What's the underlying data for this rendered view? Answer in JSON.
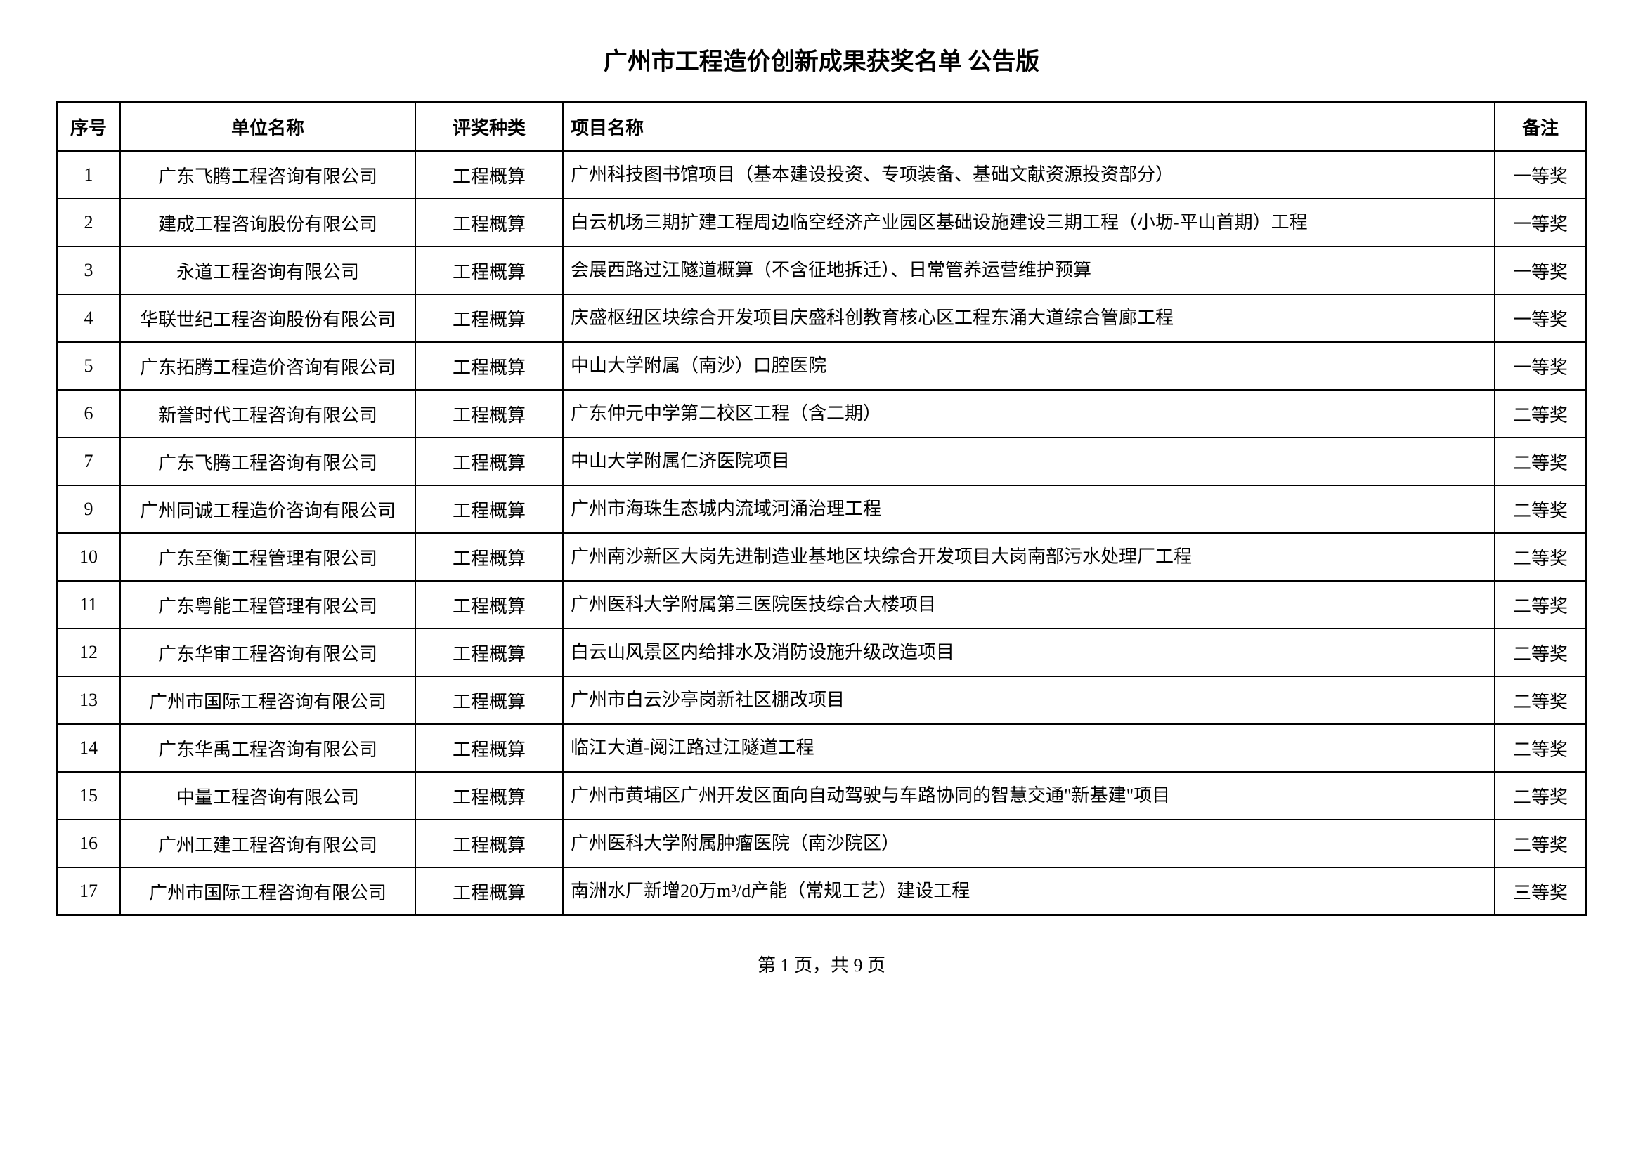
{
  "title": "广州市工程造价创新成果获奖名单 公告版",
  "headers": {
    "no": "序号",
    "company": "单位名称",
    "category": "评奖种类",
    "project": "项目名称",
    "remark": "备注"
  },
  "rows": [
    {
      "no": "1",
      "company": "广东飞腾工程咨询有限公司",
      "category": "工程概算",
      "project": "广州科技图书馆项目（基本建设投资、专项装备、基础文献资源投资部分）",
      "remark": "一等奖"
    },
    {
      "no": "2",
      "company": "建成工程咨询股份有限公司",
      "category": "工程概算",
      "project": "白云机场三期扩建工程周边临空经济产业园区基础设施建设三期工程（小坜-平山首期）工程",
      "remark": "一等奖"
    },
    {
      "no": "3",
      "company": "永道工程咨询有限公司",
      "category": "工程概算",
      "project": "会展西路过江隧道概算（不含征地拆迁）、日常管养运营维护预算",
      "remark": "一等奖"
    },
    {
      "no": "4",
      "company": "华联世纪工程咨询股份有限公司",
      "category": "工程概算",
      "project": "庆盛枢纽区块综合开发项目庆盛科创教育核心区工程东涌大道综合管廊工程",
      "remark": "一等奖"
    },
    {
      "no": "5",
      "company": "广东拓腾工程造价咨询有限公司",
      "category": "工程概算",
      "project": "中山大学附属（南沙）口腔医院",
      "remark": "一等奖"
    },
    {
      "no": "6",
      "company": "新誉时代工程咨询有限公司",
      "category": "工程概算",
      "project": "广东仲元中学第二校区工程（含二期）",
      "remark": "二等奖"
    },
    {
      "no": "7",
      "company": "广东飞腾工程咨询有限公司",
      "category": "工程概算",
      "project": "中山大学附属仁济医院项目",
      "remark": "二等奖"
    },
    {
      "no": "9",
      "company": "广州同诚工程造价咨询有限公司",
      "category": "工程概算",
      "project": "广州市海珠生态城内流域河涌治理工程",
      "remark": "二等奖"
    },
    {
      "no": "10",
      "company": "广东至衡工程管理有限公司",
      "category": "工程概算",
      "project": "广州南沙新区大岗先进制造业基地区块综合开发项目大岗南部污水处理厂工程",
      "remark": "二等奖"
    },
    {
      "no": "11",
      "company": "广东粤能工程管理有限公司",
      "category": "工程概算",
      "project": "广州医科大学附属第三医院医技综合大楼项目",
      "remark": "二等奖"
    },
    {
      "no": "12",
      "company": "广东华审工程咨询有限公司",
      "category": "工程概算",
      "project": "白云山风景区内给排水及消防设施升级改造项目",
      "remark": "二等奖"
    },
    {
      "no": "13",
      "company": "广州市国际工程咨询有限公司",
      "category": "工程概算",
      "project": "广州市白云沙亭岗新社区棚改项目",
      "remark": "二等奖"
    },
    {
      "no": "14",
      "company": "广东华禹工程咨询有限公司",
      "category": "工程概算",
      "project": "临江大道-阅江路过江隧道工程",
      "remark": "二等奖"
    },
    {
      "no": "15",
      "company": "中量工程咨询有限公司",
      "category": "工程概算",
      "project": "广州市黄埔区广州开发区面向自动驾驶与车路协同的智慧交通\"新基建\"项目",
      "remark": "二等奖"
    },
    {
      "no": "16",
      "company": "广州工建工程咨询有限公司",
      "category": "工程概算",
      "project": "广州医科大学附属肿瘤医院（南沙院区）",
      "remark": "二等奖"
    },
    {
      "no": "17",
      "company": "广州市国际工程咨询有限公司",
      "category": "工程概算",
      "project": "南洲水厂新增20万m³/d产能（常规工艺）建设工程",
      "remark": "三等奖"
    }
  ],
  "footer": "第 1 页，共 9 页",
  "styling": {
    "background_color": "#ffffff",
    "text_color": "#000000",
    "border_color": "#000000",
    "title_fontsize": 34,
    "cell_fontsize": 26,
    "footer_fontsize": 26,
    "column_widths": {
      "no": 90,
      "company": 420,
      "category": 210,
      "remark": 130
    }
  }
}
